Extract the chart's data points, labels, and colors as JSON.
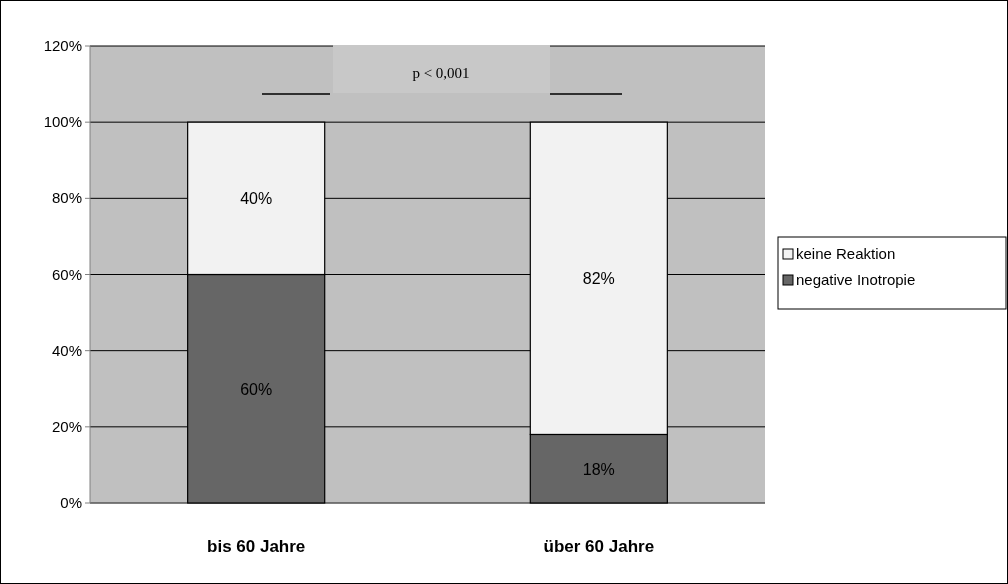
{
  "chart_data": {
    "type": "bar",
    "stacked": true,
    "categories": [
      "bis 60 Jahre",
      "über 60 Jahre"
    ],
    "series": [
      {
        "name": "negative Inotropie",
        "color": "#666666",
        "values": [
          60,
          18
        ],
        "value_labels": [
          "60%",
          "18%"
        ]
      },
      {
        "name": "keine Reaktion",
        "color": "#f2f2f2",
        "values": [
          40,
          82
        ],
        "value_labels": [
          "40%",
          "82%"
        ]
      }
    ],
    "ylim": [
      0,
      120
    ],
    "yticks": [
      {
        "value": 0,
        "label": "0%"
      },
      {
        "value": 20,
        "label": "20%"
      },
      {
        "value": 40,
        "label": "40%"
      },
      {
        "value": 60,
        "label": "60%"
      },
      {
        "value": 80,
        "label": "80%"
      },
      {
        "value": 100,
        "label": "100%"
      },
      {
        "value": 120,
        "label": "120%"
      }
    ],
    "grid": "y",
    "legend": "right",
    "annotations": [
      "p < 0,001"
    ]
  }
}
